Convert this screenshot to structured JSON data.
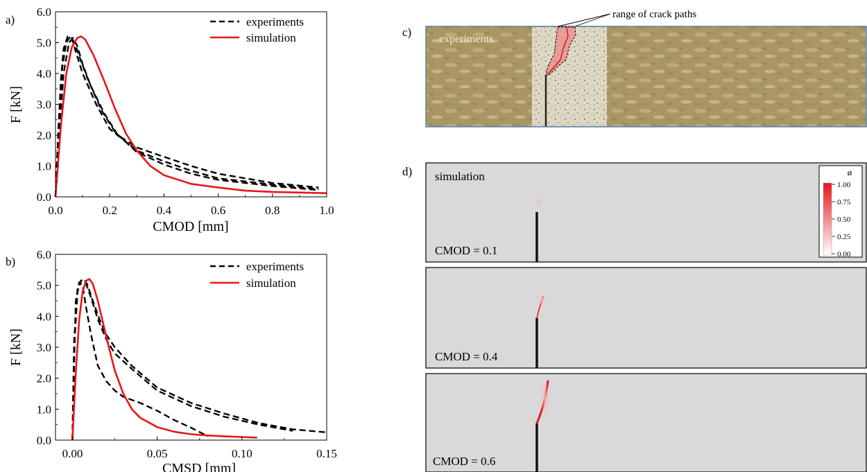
{
  "panels": {
    "a": "a)",
    "b": "b)",
    "c": "c)",
    "d": "d)"
  },
  "colors": {
    "experiments": "#000000",
    "simulation": "#e8161b",
    "specimen_stone": "#a99662",
    "specimen_band": "#ded7c4",
    "crack_zone": "#f08080",
    "sim_background": "#d9d9d9"
  },
  "chart_data": [
    {
      "id": "a",
      "type": "line",
      "xlabel": "CMOD [mm]",
      "ylabel": "F [kN]",
      "xlim": [
        0.0,
        1.0
      ],
      "ylim": [
        0.0,
        6.0
      ],
      "xticks": [
        "0.0",
        "0.2",
        "0.4",
        "0.6",
        "0.8",
        "1.0"
      ],
      "yticks": [
        "0.0",
        "1.0",
        "2.0",
        "3.0",
        "4.0",
        "5.0",
        "6.0"
      ],
      "legend": {
        "position": "top-right",
        "experiments": "experiments",
        "simulation": "simulation"
      },
      "series": [
        {
          "name": "experiments",
          "style": "dashed",
          "x": [
            0.0,
            0.01,
            0.02,
            0.03,
            0.045,
            0.06,
            0.075,
            0.1,
            0.15,
            0.2,
            0.3,
            0.4,
            0.5,
            0.6,
            0.8,
            0.97
          ],
          "y": [
            0.0,
            2.0,
            3.8,
            4.8,
            5.2,
            5.15,
            4.7,
            4.0,
            3.0,
            2.2,
            1.5,
            1.15,
            0.85,
            0.6,
            0.4,
            0.25
          ]
        },
        {
          "name": "experiments",
          "style": "dashed",
          "x": [
            0.0,
            0.012,
            0.025,
            0.04,
            0.055,
            0.07,
            0.09,
            0.12,
            0.17,
            0.22,
            0.3,
            0.4,
            0.5,
            0.6,
            0.8,
            0.97
          ],
          "y": [
            0.0,
            2.4,
            4.2,
            5.0,
            5.2,
            5.0,
            4.5,
            3.8,
            2.8,
            2.1,
            1.45,
            1.05,
            0.75,
            0.55,
            0.35,
            0.22
          ]
        },
        {
          "name": "experiments",
          "style": "dashed",
          "x": [
            0.0,
            0.015,
            0.03,
            0.05,
            0.065,
            0.08,
            0.1,
            0.13,
            0.18,
            0.23,
            0.3,
            0.4,
            0.5,
            0.6,
            0.8,
            0.97
          ],
          "y": [
            0.0,
            2.2,
            4.0,
            5.0,
            5.15,
            4.9,
            4.3,
            3.6,
            2.7,
            2.0,
            1.6,
            1.3,
            1.0,
            0.75,
            0.45,
            0.3
          ]
        },
        {
          "name": "simulation",
          "style": "solid",
          "x": [
            0.0,
            0.02,
            0.04,
            0.06,
            0.08,
            0.095,
            0.11,
            0.14,
            0.18,
            0.22,
            0.26,
            0.3,
            0.35,
            0.4,
            0.5,
            0.6,
            0.7,
            0.8,
            1.0
          ],
          "y": [
            0.0,
            2.3,
            4.0,
            4.85,
            5.15,
            5.2,
            5.1,
            4.6,
            3.75,
            2.85,
            2.05,
            1.5,
            1.0,
            0.7,
            0.42,
            0.3,
            0.2,
            0.16,
            0.12
          ]
        }
      ]
    },
    {
      "id": "b",
      "type": "line",
      "xlabel": "CMSD [mm]",
      "ylabel": "F [kN]",
      "xlim": [
        -0.01,
        0.15
      ],
      "ylim": [
        0.0,
        6.0
      ],
      "xticks": [
        "0.00",
        "0.05",
        "0.10",
        "0.15"
      ],
      "xtick_values": [
        0.0,
        0.05,
        0.1,
        0.15
      ],
      "yticks": [
        "0.0",
        "1.0",
        "2.0",
        "3.0",
        "4.0",
        "5.0",
        "6.0"
      ],
      "legend": {
        "position": "top-right",
        "experiments": "experiments",
        "simulation": "simulation"
      },
      "series": [
        {
          "name": "experiments",
          "style": "dashed",
          "x": [
            0.0,
            0.001,
            0.002,
            0.004,
            0.006,
            0.008,
            0.011,
            0.015,
            0.02,
            0.025,
            0.03,
            0.04,
            0.05,
            0.06,
            0.07,
            0.08
          ],
          "y": [
            0.0,
            2.5,
            4.5,
            5.1,
            5.0,
            4.3,
            3.4,
            2.4,
            1.9,
            1.6,
            1.4,
            1.2,
            0.95,
            0.65,
            0.4,
            0.12
          ]
        },
        {
          "name": "experiments",
          "style": "dashed",
          "x": [
            0.0,
            0.001,
            0.003,
            0.005,
            0.007,
            0.009,
            0.012,
            0.016,
            0.02,
            0.025,
            0.035,
            0.05,
            0.07,
            0.09,
            0.11,
            0.13,
            0.15
          ],
          "y": [
            0.0,
            3.0,
            4.8,
            5.15,
            5.2,
            5.0,
            4.5,
            3.9,
            3.4,
            3.0,
            2.4,
            1.7,
            1.2,
            0.85,
            0.55,
            0.35,
            0.25
          ]
        },
        {
          "name": "experiments",
          "style": "dashed",
          "x": [
            0.0,
            0.001,
            0.003,
            0.005,
            0.008,
            0.011,
            0.015,
            0.02,
            0.025,
            0.035,
            0.05,
            0.07,
            0.09,
            0.11,
            0.13
          ],
          "y": [
            0.0,
            3.2,
            4.9,
            5.15,
            5.05,
            4.6,
            3.9,
            3.25,
            2.8,
            2.3,
            1.6,
            1.1,
            0.75,
            0.5,
            0.3
          ]
        },
        {
          "name": "simulation",
          "style": "solid",
          "x": [
            0.0,
            0.002,
            0.004,
            0.006,
            0.008,
            0.01,
            0.012,
            0.015,
            0.018,
            0.021,
            0.025,
            0.03,
            0.035,
            0.04,
            0.05,
            0.06,
            0.07,
            0.08,
            0.09,
            0.1,
            0.109
          ],
          "y": [
            0.0,
            2.2,
            3.9,
            4.8,
            5.15,
            5.2,
            5.05,
            4.5,
            3.8,
            3.1,
            2.25,
            1.5,
            1.0,
            0.72,
            0.42,
            0.27,
            0.19,
            0.15,
            0.12,
            0.1,
            0.08
          ]
        }
      ]
    }
  ],
  "photo": {
    "label": "experiments",
    "annotation": "range of crack paths"
  },
  "simulation": {
    "label": "simulation",
    "colorbar": {
      "symbol": "ø",
      "ticks": [
        "1.00",
        "0.75",
        "0.50",
        "0.25",
        "0.00"
      ],
      "values": [
        1.0,
        0.75,
        0.5,
        0.25,
        0.0
      ]
    },
    "frames": [
      {
        "label": "CMOD = 0.1",
        "crack_extent": 0.05
      },
      {
        "label": "CMOD = 0.4",
        "crack_extent": 0.35
      },
      {
        "label": "CMOD = 0.6",
        "crack_extent": 0.8
      }
    ]
  }
}
